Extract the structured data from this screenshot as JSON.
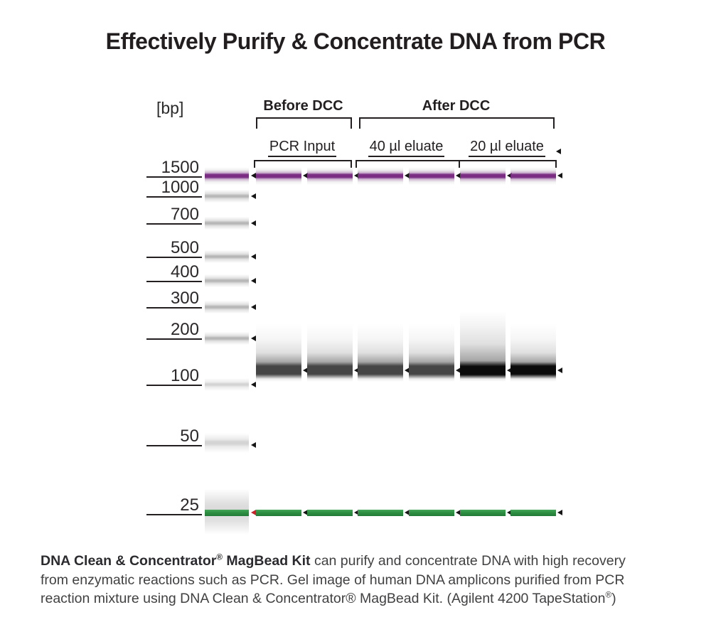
{
  "title": "Effectively Purify & Concentrate DNA from PCR",
  "gel": {
    "bp_axis_label": "[bp]",
    "groups": [
      {
        "label": "Before DCC"
      },
      {
        "label": "After DCC"
      }
    ],
    "columns": [
      {
        "label": "PCR Input",
        "group": "Before DCC",
        "lanes": 2
      },
      {
        "label": "40 µl eluate",
        "group": "After DCC",
        "lanes": 2
      },
      {
        "label": "20 µl eluate",
        "group": "After DCC",
        "lanes": 2
      }
    ],
    "ladder_markers": [
      "1500",
      "1000",
      "700",
      "500",
      "400",
      "300",
      "200",
      "100",
      "50",
      "25"
    ],
    "lanes": [
      {
        "id": "pcr-input-1",
        "column": "PCR Input",
        "bands": [
          {
            "bp": 1500,
            "type": "upper-marker"
          },
          {
            "bp": "~120",
            "type": "product",
            "intensity": "medium"
          },
          {
            "bp": 25,
            "type": "lower-marker"
          }
        ]
      },
      {
        "id": "pcr-input-2",
        "column": "PCR Input",
        "bands": [
          {
            "bp": 1500,
            "type": "upper-marker"
          },
          {
            "bp": "~120",
            "type": "product",
            "intensity": "medium"
          },
          {
            "bp": 25,
            "type": "lower-marker"
          }
        ]
      },
      {
        "id": "40ul-eluate-1",
        "column": "40 µl eluate",
        "bands": [
          {
            "bp": 1500,
            "type": "upper-marker"
          },
          {
            "bp": "~120",
            "type": "product",
            "intensity": "medium"
          },
          {
            "bp": 25,
            "type": "lower-marker"
          }
        ]
      },
      {
        "id": "40ul-eluate-2",
        "column": "40 µl eluate",
        "bands": [
          {
            "bp": 1500,
            "type": "upper-marker"
          },
          {
            "bp": "~120",
            "type": "product",
            "intensity": "medium"
          },
          {
            "bp": 25,
            "type": "lower-marker"
          }
        ]
      },
      {
        "id": "20ul-eluate-1",
        "column": "20 µl eluate",
        "bands": [
          {
            "bp": 1500,
            "type": "upper-marker"
          },
          {
            "bp": "~120",
            "type": "product",
            "intensity": "strong",
            "smear": "tall"
          },
          {
            "bp": 25,
            "type": "lower-marker"
          }
        ]
      },
      {
        "id": "20ul-eluate-2",
        "column": "20 µl eluate",
        "bands": [
          {
            "bp": 1500,
            "type": "upper-marker"
          },
          {
            "bp": "~120",
            "type": "product",
            "intensity": "strong"
          },
          {
            "bp": 25,
            "type": "lower-marker"
          }
        ]
      }
    ],
    "colors": {
      "ink": "#231f20",
      "upper_marker": "#7b2d83",
      "lower_marker": "#2f9143",
      "ladder_band": "#b3b3b3",
      "product_medium": "#454545",
      "product_strong": "#0b0b0b",
      "red_marker_arrow": "#cc2127"
    }
  },
  "caption": {
    "line1_bold": "DNA Clean & Concentrator",
    "line1_bold_sup": "®",
    "line1_bold2": " MagBead Kit",
    "line1_rest": " can purify and concentrate DNA with high recovery",
    "line2": "from enzymatic reactions such as PCR. Gel image of human DNA amplicons purified from PCR",
    "line3": "reaction mixture using DNA Clean & Concentrator® MagBead Kit. (Agilent 4200 TapeStation",
    "line3_sup": "®",
    "line3_end": ")"
  }
}
